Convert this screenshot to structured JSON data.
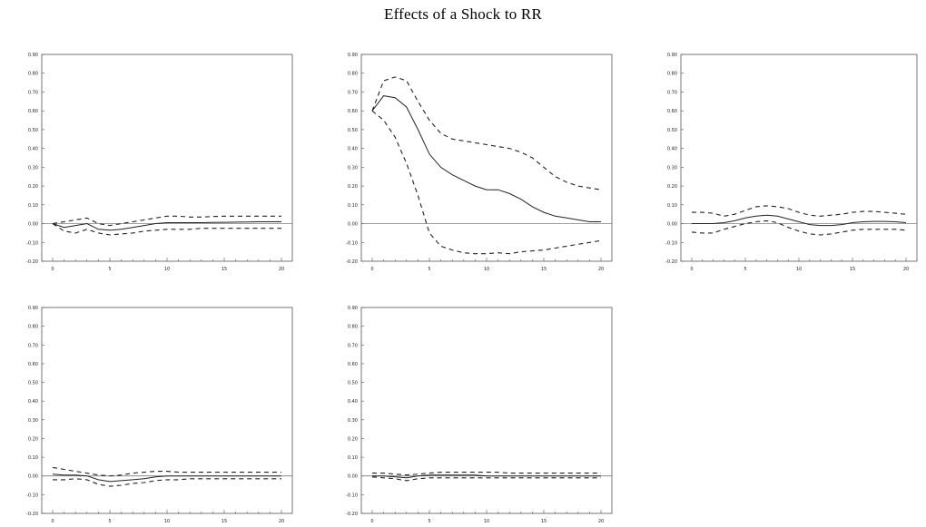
{
  "figure": {
    "title": "Effects of a Shock to RR"
  },
  "chart_data": [
    {
      "type": "line",
      "title": "",
      "x": [
        0,
        1,
        2,
        3,
        4,
        5,
        6,
        7,
        8,
        9,
        10,
        11,
        12,
        13,
        14,
        15,
        16,
        17,
        18,
        19,
        20
      ],
      "xticks": [
        0,
        5,
        10,
        15,
        20
      ],
      "ylim": [
        -0.2,
        0.9
      ],
      "yticks": [
        -0.2,
        -0.1,
        0.0,
        0.1,
        0.2,
        0.3,
        0.4,
        0.5,
        0.6,
        0.7,
        0.8,
        0.9
      ],
      "series": [
        {
          "role": "response",
          "style": "solid",
          "values": [
            0.0,
            -0.02,
            -0.01,
            0.0,
            -0.03,
            -0.035,
            -0.03,
            -0.02,
            -0.01,
            0.0,
            0.005,
            0.005,
            0.005,
            0.005,
            0.006,
            0.007,
            0.008,
            0.009,
            0.01,
            0.01,
            0.01
          ]
        },
        {
          "role": "upper",
          "style": "dashed",
          "values": [
            0.0,
            0.01,
            0.02,
            0.03,
            0.0,
            -0.01,
            0.0,
            0.01,
            0.02,
            0.03,
            0.04,
            0.04,
            0.035,
            0.035,
            0.038,
            0.04,
            0.04,
            0.04,
            0.04,
            0.04,
            0.04
          ]
        },
        {
          "role": "lower",
          "style": "dashed",
          "values": [
            0.0,
            -0.04,
            -0.05,
            -0.03,
            -0.05,
            -0.06,
            -0.055,
            -0.05,
            -0.04,
            -0.035,
            -0.03,
            -0.03,
            -0.03,
            -0.025,
            -0.025,
            -0.025,
            -0.025,
            -0.025,
            -0.025,
            -0.025,
            -0.025
          ]
        }
      ]
    },
    {
      "type": "line",
      "title": "",
      "x": [
        0,
        1,
        2,
        3,
        4,
        5,
        6,
        7,
        8,
        9,
        10,
        11,
        12,
        13,
        14,
        15,
        16,
        17,
        18,
        19,
        20
      ],
      "xticks": [
        0,
        5,
        10,
        15,
        20
      ],
      "ylim": [
        -0.2,
        0.9
      ],
      "yticks": [
        -0.2,
        -0.1,
        0.0,
        0.1,
        0.2,
        0.3,
        0.4,
        0.5,
        0.6,
        0.7,
        0.8,
        0.9
      ],
      "series": [
        {
          "role": "response",
          "style": "solid",
          "values": [
            0.6,
            0.68,
            0.67,
            0.62,
            0.5,
            0.37,
            0.3,
            0.26,
            0.23,
            0.2,
            0.18,
            0.18,
            0.16,
            0.13,
            0.09,
            0.06,
            0.04,
            0.03,
            0.02,
            0.01,
            0.01
          ]
        },
        {
          "role": "upper",
          "style": "dashed",
          "values": [
            0.6,
            0.76,
            0.78,
            0.76,
            0.65,
            0.55,
            0.48,
            0.45,
            0.44,
            0.43,
            0.42,
            0.41,
            0.4,
            0.38,
            0.35,
            0.3,
            0.25,
            0.22,
            0.2,
            0.19,
            0.18
          ]
        },
        {
          "role": "lower",
          "style": "dashed",
          "values": [
            0.6,
            0.55,
            0.46,
            0.32,
            0.15,
            -0.05,
            -0.12,
            -0.14,
            -0.155,
            -0.16,
            -0.16,
            -0.155,
            -0.16,
            -0.15,
            -0.145,
            -0.14,
            -0.13,
            -0.12,
            -0.11,
            -0.1,
            -0.09
          ]
        }
      ]
    },
    {
      "type": "line",
      "title": "",
      "x": [
        0,
        1,
        2,
        3,
        4,
        5,
        6,
        7,
        8,
        9,
        10,
        11,
        12,
        13,
        14,
        15,
        16,
        17,
        18,
        19,
        20
      ],
      "xticks": [
        0,
        5,
        10,
        15,
        20
      ],
      "ylim": [
        -0.2,
        0.9
      ],
      "yticks": [
        -0.2,
        -0.1,
        0.0,
        0.1,
        0.2,
        0.3,
        0.4,
        0.5,
        0.6,
        0.7,
        0.8,
        0.9
      ],
      "series": [
        {
          "role": "response",
          "style": "solid",
          "values": [
            0.0,
            0.0,
            0.0,
            0.005,
            0.015,
            0.03,
            0.04,
            0.045,
            0.04,
            0.025,
            0.01,
            -0.005,
            -0.01,
            -0.01,
            -0.005,
            0.005,
            0.01,
            0.012,
            0.012,
            0.01,
            0.005
          ]
        },
        {
          "role": "upper",
          "style": "dashed",
          "values": [
            0.06,
            0.06,
            0.055,
            0.04,
            0.05,
            0.07,
            0.09,
            0.095,
            0.09,
            0.08,
            0.06,
            0.045,
            0.04,
            0.045,
            0.05,
            0.06,
            0.065,
            0.065,
            0.06,
            0.055,
            0.05
          ]
        },
        {
          "role": "lower",
          "style": "dashed",
          "values": [
            -0.045,
            -0.05,
            -0.05,
            -0.03,
            -0.015,
            0.0,
            0.01,
            0.015,
            0.005,
            -0.02,
            -0.04,
            -0.055,
            -0.06,
            -0.055,
            -0.045,
            -0.035,
            -0.03,
            -0.03,
            -0.03,
            -0.03,
            -0.035
          ]
        }
      ]
    },
    {
      "type": "line",
      "title": "",
      "x": [
        0,
        1,
        2,
        3,
        4,
        5,
        6,
        7,
        8,
        9,
        10,
        11,
        12,
        13,
        14,
        15,
        16,
        17,
        18,
        19,
        20
      ],
      "xticks": [
        0,
        5,
        10,
        15,
        20
      ],
      "ylim": [
        -0.2,
        0.9
      ],
      "yticks": [
        -0.2,
        -0.1,
        0.0,
        0.1,
        0.2,
        0.3,
        0.4,
        0.5,
        0.6,
        0.7,
        0.8,
        0.9
      ],
      "series": [
        {
          "role": "response",
          "style": "solid",
          "values": [
            0.01,
            0.005,
            0.005,
            0.0,
            -0.02,
            -0.03,
            -0.025,
            -0.02,
            -0.015,
            -0.005,
            0.0,
            0.0,
            0.0,
            0.0,
            0.0,
            0.0,
            0.0,
            0.0,
            0.0,
            0.0,
            0.0
          ]
        },
        {
          "role": "upper",
          "style": "dashed",
          "values": [
            0.045,
            0.035,
            0.025,
            0.015,
            0.005,
            0.0,
            0.005,
            0.015,
            0.02,
            0.025,
            0.025,
            0.02,
            0.02,
            0.02,
            0.02,
            0.02,
            0.02,
            0.02,
            0.02,
            0.02,
            0.02
          ]
        },
        {
          "role": "lower",
          "style": "dashed",
          "values": [
            -0.02,
            -0.02,
            -0.015,
            -0.02,
            -0.045,
            -0.055,
            -0.05,
            -0.04,
            -0.035,
            -0.025,
            -0.02,
            -0.02,
            -0.015,
            -0.015,
            -0.015,
            -0.015,
            -0.015,
            -0.015,
            -0.015,
            -0.015,
            -0.015
          ]
        }
      ]
    },
    {
      "type": "line",
      "title": "",
      "x": [
        0,
        1,
        2,
        3,
        4,
        5,
        6,
        7,
        8,
        9,
        10,
        11,
        12,
        13,
        14,
        15,
        16,
        17,
        18,
        19,
        20
      ],
      "xticks": [
        0,
        5,
        10,
        15,
        20
      ],
      "ylim": [
        -0.2,
        0.9
      ],
      "yticks": [
        -0.2,
        -0.1,
        0.0,
        0.1,
        0.2,
        0.3,
        0.4,
        0.5,
        0.6,
        0.7,
        0.8,
        0.9
      ],
      "series": [
        {
          "role": "response",
          "style": "solid",
          "values": [
            0.0,
            0.0,
            -0.005,
            -0.01,
            0.0,
            0.005,
            0.005,
            0.005,
            0.005,
            0.005,
            0.0,
            0.0,
            0.0,
            0.0,
            0.0,
            0.0,
            0.0,
            0.0,
            0.0,
            0.0,
            0.0
          ]
        },
        {
          "role": "upper",
          "style": "dashed",
          "values": [
            0.015,
            0.015,
            0.01,
            0.005,
            0.01,
            0.015,
            0.02,
            0.02,
            0.02,
            0.02,
            0.02,
            0.02,
            0.015,
            0.015,
            0.015,
            0.015,
            0.015,
            0.015,
            0.015,
            0.015,
            0.015
          ]
        },
        {
          "role": "lower",
          "style": "dashed",
          "values": [
            -0.005,
            -0.01,
            -0.015,
            -0.025,
            -0.015,
            -0.01,
            -0.01,
            -0.01,
            -0.01,
            -0.01,
            -0.01,
            -0.01,
            -0.01,
            -0.01,
            -0.01,
            -0.01,
            -0.01,
            -0.01,
            -0.01,
            -0.01,
            -0.01
          ]
        }
      ]
    }
  ]
}
